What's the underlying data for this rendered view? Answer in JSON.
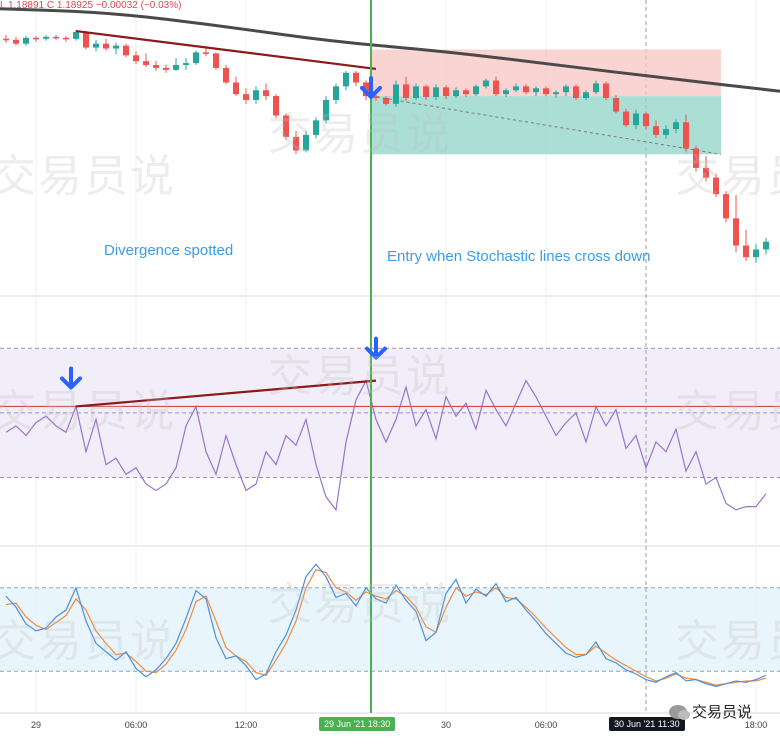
{
  "header": {
    "ohlc_text": "L 1.18891  C 1.18925  −0.00032 (−0.03%)"
  },
  "annotations": {
    "left": "Divergence spotted",
    "right": "Entry when Stochastic lines cross down"
  },
  "watermark": {
    "text": "交易员说"
  },
  "brand": {
    "text": "交易员说"
  },
  "time_axis": {
    "ticks": [
      "29",
      "06:00",
      "12:00",
      "30",
      "06:00",
      "18:00"
    ],
    "badge_entry": "29 Jun '21  18:30",
    "badge_cursor": "30 Jun '21  11:30"
  },
  "colors": {
    "bull": "#26a69a",
    "bear": "#ef5350",
    "ma": "#4a4a4a",
    "divergence_line": "#8b1a1a",
    "entry_line": "#4caf50",
    "arrow": "#2962ff",
    "annotation": "#3d9ce8",
    "rsi": "#9575cd",
    "stoch_k": "#4a90e2",
    "stoch_d": "#f08a3c",
    "stop_zone": "#f8c4c4",
    "target_zone": "#8fd3c7"
  },
  "chart_data": [
    {
      "type": "candlestick",
      "pane": "price",
      "candles": [
        [
          1.1925,
          1.1929,
          1.1921,
          1.1924
        ],
        [
          1.1924,
          1.1927,
          1.1918,
          1.192
        ],
        [
          1.192,
          1.1928,
          1.1918,
          1.1926
        ],
        [
          1.1926,
          1.1928,
          1.1922,
          1.1925
        ],
        [
          1.1925,
          1.1929,
          1.1923,
          1.1927
        ],
        [
          1.1927,
          1.1929,
          1.1924,
          1.1926
        ],
        [
          1.1926,
          1.1928,
          1.1922,
          1.1925
        ],
        [
          1.1925,
          1.1934,
          1.1923,
          1.1932
        ],
        [
          1.1932,
          1.1933,
          1.1914,
          1.1916
        ],
        [
          1.1916,
          1.1924,
          1.1912,
          1.192
        ],
        [
          1.192,
          1.1925,
          1.1913,
          1.1915
        ],
        [
          1.1915,
          1.1921,
          1.1909,
          1.1918
        ],
        [
          1.1918,
          1.192,
          1.1906,
          1.1908
        ],
        [
          1.1908,
          1.1912,
          1.1899,
          1.1902
        ],
        [
          1.1902,
          1.191,
          1.1896,
          1.1898
        ],
        [
          1.1898,
          1.1902,
          1.1892,
          1.1895
        ],
        [
          1.1895,
          1.1898,
          1.189,
          1.1893
        ],
        [
          1.1893,
          1.1905,
          1.1892,
          1.1898
        ],
        [
          1.1898,
          1.1905,
          1.1893,
          1.19
        ],
        [
          1.19,
          1.1913,
          1.1898,
          1.1911
        ],
        [
          1.1911,
          1.1918,
          1.1907,
          1.191
        ],
        [
          1.191,
          1.1911,
          1.1893,
          1.1895
        ],
        [
          1.1895,
          1.1898,
          1.1878,
          1.188
        ],
        [
          1.188,
          1.1886,
          1.1866,
          1.1868
        ],
        [
          1.1868,
          1.1874,
          1.1858,
          1.1862
        ],
        [
          1.1862,
          1.1876,
          1.1858,
          1.1872
        ],
        [
          1.1872,
          1.1879,
          1.1862,
          1.1866
        ],
        [
          1.1866,
          1.1868,
          1.1843,
          1.1846
        ],
        [
          1.1846,
          1.1848,
          1.1821,
          1.1824
        ],
        [
          1.1824,
          1.183,
          1.1806,
          1.181
        ],
        [
          1.181,
          1.183,
          1.1808,
          1.1826
        ],
        [
          1.1826,
          1.1844,
          1.1822,
          1.1841
        ],
        [
          1.1841,
          1.1866,
          1.1838,
          1.1862
        ],
        [
          1.1862,
          1.1879,
          1.1858,
          1.1876
        ],
        [
          1.1876,
          1.1892,
          1.1872,
          1.189
        ],
        [
          1.189,
          1.1892,
          1.1876,
          1.188
        ],
        [
          1.188,
          1.1882,
          1.1862,
          1.1866
        ],
        [
          1.1866,
          1.1869,
          1.1861,
          1.1864
        ],
        [
          1.1864,
          1.1866,
          1.1856,
          1.1858
        ],
        [
          1.1858,
          1.1882,
          1.1855,
          1.1878
        ],
        [
          1.1878,
          1.1886,
          1.1861,
          1.1864
        ],
        [
          1.1864,
          1.1879,
          1.1862,
          1.1876
        ],
        [
          1.1876,
          1.1878,
          1.1862,
          1.1865
        ],
        [
          1.1865,
          1.1878,
          1.1862,
          1.1875
        ],
        [
          1.1875,
          1.1877,
          1.1863,
          1.1866
        ],
        [
          1.1866,
          1.1875,
          1.1864,
          1.1872
        ],
        [
          1.1872,
          1.1874,
          1.1865,
          1.1868
        ],
        [
          1.1868,
          1.1878,
          1.1866,
          1.1876
        ],
        [
          1.1876,
          1.1884,
          1.1874,
          1.1882
        ],
        [
          1.1882,
          1.1886,
          1.1866,
          1.1868
        ],
        [
          1.1868,
          1.1874,
          1.1865,
          1.1872
        ],
        [
          1.1872,
          1.1879,
          1.187,
          1.1876
        ],
        [
          1.1876,
          1.1878,
          1.1868,
          1.187
        ],
        [
          1.187,
          1.1876,
          1.1866,
          1.1874
        ],
        [
          1.1874,
          1.1876,
          1.1866,
          1.1868
        ],
        [
          1.1868,
          1.1872,
          1.1864,
          1.187
        ],
        [
          1.187,
          1.1878,
          1.1866,
          1.1876
        ],
        [
          1.1876,
          1.1878,
          1.1862,
          1.1864
        ],
        [
          1.1864,
          1.1872,
          1.1862,
          1.187
        ],
        [
          1.187,
          1.1882,
          1.1868,
          1.1879
        ],
        [
          1.1879,
          1.1881,
          1.1862,
          1.1864
        ],
        [
          1.1864,
          1.1867,
          1.1848,
          1.185
        ],
        [
          1.185,
          1.1853,
          1.1834,
          1.1836
        ],
        [
          1.1836,
          1.1852,
          1.1832,
          1.1848
        ],
        [
          1.1848,
          1.185,
          1.1832,
          1.1835
        ],
        [
          1.1835,
          1.1841,
          1.1823,
          1.1826
        ],
        [
          1.1826,
          1.1836,
          1.1822,
          1.1832
        ],
        [
          1.1832,
          1.1842,
          1.1828,
          1.1839
        ],
        [
          1.1839,
          1.1847,
          1.1808,
          1.1812
        ],
        [
          1.1812,
          1.1815,
          1.1788,
          1.1792
        ],
        [
          1.1792,
          1.1804,
          1.1778,
          1.1782
        ],
        [
          1.1782,
          1.1786,
          1.1762,
          1.1765
        ],
        [
          1.1765,
          1.1768,
          1.1736,
          1.174
        ],
        [
          1.174,
          1.1764,
          1.1705,
          1.1712
        ],
        [
          1.1712,
          1.1728,
          1.1696,
          1.17
        ],
        [
          1.17,
          1.1714,
          1.1694,
          1.1708
        ],
        [
          1.1708,
          1.172,
          1.1703,
          1.1716
        ]
      ],
      "moving_average": [
        1.1956,
        1.1952,
        1.1938,
        1.1922,
        1.1912,
        1.1898,
        1.1884,
        1.1871
      ],
      "divergence_line": [
        [
          7,
          1.1933
        ],
        [
          37,
          1.1894
        ]
      ],
      "position": {
        "entry": 1.1866,
        "stop": 1.1914,
        "target": 1.1806,
        "start_index": 37,
        "end_index": 71
      }
    },
    {
      "type": "line",
      "pane": "rsi",
      "values": [
        44,
        46,
        43,
        47,
        49,
        46,
        44,
        52,
        38,
        48,
        34,
        36,
        31,
        33,
        28,
        26,
        28,
        33,
        46,
        52,
        38,
        31,
        43,
        34,
        26,
        28,
        38,
        34,
        43,
        40,
        48,
        34,
        24,
        20,
        41,
        54,
        60,
        48,
        41,
        48,
        58,
        46,
        51,
        42,
        55,
        49,
        53,
        45,
        57,
        51,
        46,
        53,
        60,
        55,
        49,
        43,
        47,
        50,
        41,
        52,
        46,
        51,
        39,
        43,
        33,
        41,
        38,
        45,
        32,
        38,
        28,
        30,
        22,
        20,
        21,
        21,
        25
      ],
      "bands": {
        "upper": 70,
        "middle": 50,
        "lower": 30
      },
      "divergence_line": [
        [
          7,
          52
        ],
        [
          37,
          60
        ]
      ],
      "level_line": 52,
      "ylim": [
        15,
        80
      ]
    },
    {
      "type": "line",
      "pane": "stochastic",
      "series": [
        {
          "values": [
            74,
            66,
            54,
            49,
            51,
            59,
            64,
            80,
            56,
            40,
            34,
            28,
            34,
            22,
            16,
            21,
            29,
            40,
            58,
            78,
            72,
            44,
            29,
            31,
            24,
            14,
            18,
            34,
            46,
            64,
            88,
            97,
            88,
            73,
            76,
            67,
            80,
            72,
            69,
            82,
            71,
            63,
            42,
            48,
            76,
            86,
            69,
            79,
            74,
            83,
            70,
            73,
            64,
            56,
            47,
            40,
            33,
            30,
            32,
            41,
            29,
            26,
            21,
            18,
            14,
            12,
            16,
            19,
            13,
            14,
            11,
            9,
            11,
            13,
            12,
            14,
            17
          ]
        },
        {
          "values": [
            68,
            69,
            59,
            53,
            50,
            55,
            60,
            72,
            64,
            49,
            40,
            32,
            33,
            27,
            20,
            19,
            25,
            35,
            50,
            70,
            74,
            56,
            37,
            31,
            27,
            19,
            17,
            28,
            40,
            56,
            80,
            93,
            91,
            80,
            77,
            71,
            77,
            74,
            72,
            78,
            74,
            66,
            52,
            48,
            66,
            80,
            74,
            77,
            75,
            80,
            73,
            72,
            66,
            59,
            51,
            44,
            37,
            32,
            32,
            38,
            33,
            28,
            24,
            20,
            16,
            13,
            15,
            18,
            15,
            14,
            12,
            10,
            11,
            12,
            13,
            13,
            15
          ]
        }
      ],
      "bands": {
        "upper": 80,
        "lower": 20
      },
      "ylim": [
        0,
        100
      ]
    }
  ]
}
